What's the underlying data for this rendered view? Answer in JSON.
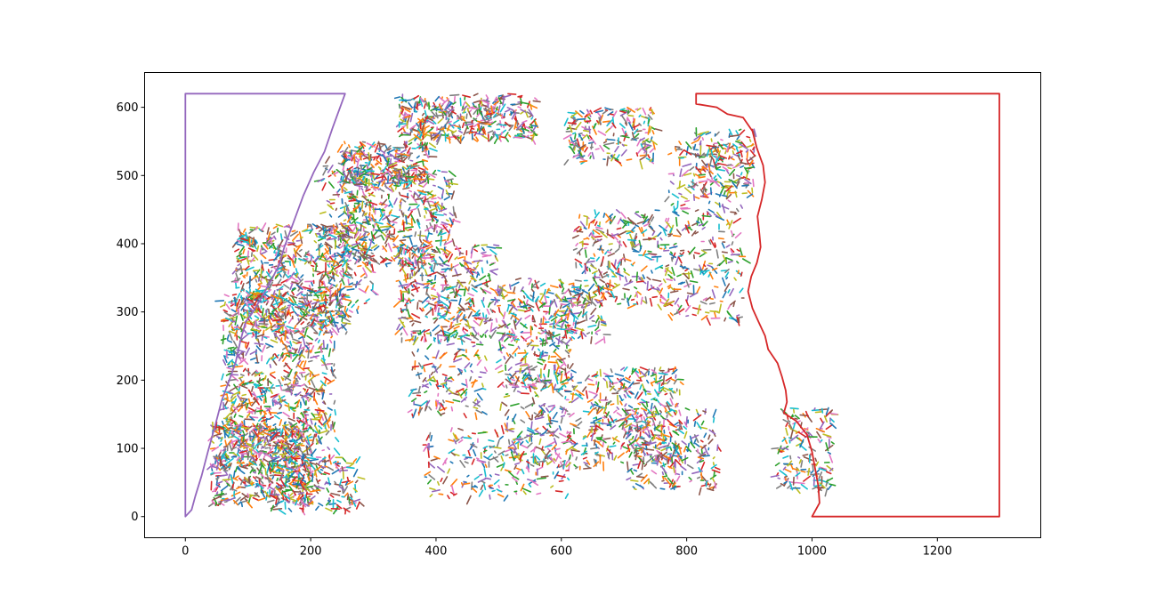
{
  "chart_data": {
    "type": "line",
    "title": "",
    "xlabel": "",
    "ylabel": "",
    "xlim": [
      -65,
      1365
    ],
    "ylim": [
      -31,
      651
    ],
    "x_ticks": [
      0,
      200,
      400,
      600,
      800,
      1000,
      1200
    ],
    "y_ticks": [
      0,
      100,
      200,
      300,
      400,
      500,
      600
    ],
    "x_tick_labels": [
      "0",
      "200",
      "400",
      "600",
      "800",
      "1000",
      "1200"
    ],
    "y_tick_labels": [
      "0",
      "100",
      "200",
      "300",
      "400",
      "500",
      "600"
    ],
    "grid": false,
    "legend": "none",
    "palette": [
      "#1f77b4",
      "#ff7f0e",
      "#2ca02c",
      "#d62728",
      "#9467bd",
      "#8c564b",
      "#e377c2",
      "#7f7f7f",
      "#bcbd22",
      "#17becf"
    ],
    "series": [
      {
        "color": "#9467bd",
        "points": [
          [
            0,
            620
          ],
          [
            255,
            620
          ],
          [
            245,
            595
          ],
          [
            235,
            570
          ],
          [
            222,
            535
          ],
          [
            205,
            505
          ],
          [
            188,
            470
          ],
          [
            172,
            430
          ],
          [
            158,
            395
          ],
          [
            150,
            370
          ],
          [
            138,
            348
          ],
          [
            122,
            322
          ],
          [
            108,
            300
          ],
          [
            96,
            285
          ],
          [
            88,
            258
          ],
          [
            80,
            225
          ],
          [
            70,
            200
          ],
          [
            58,
            170
          ],
          [
            48,
            135
          ],
          [
            36,
            95
          ],
          [
            26,
            60
          ],
          [
            16,
            30
          ],
          [
            10,
            10
          ],
          [
            0,
            0
          ],
          [
            0,
            620
          ]
        ]
      },
      {
        "color": "#d62728",
        "points": [
          [
            815,
            620
          ],
          [
            1299,
            620
          ],
          [
            1299,
            0
          ],
          [
            1000,
            0
          ],
          [
            1012,
            20
          ],
          [
            1010,
            45
          ],
          [
            1005,
            70
          ],
          [
            1000,
            95
          ],
          [
            992,
            120
          ],
          [
            975,
            140
          ],
          [
            955,
            152
          ],
          [
            960,
            168
          ],
          [
            958,
            185
          ],
          [
            952,
            205
          ],
          [
            945,
            225
          ],
          [
            930,
            245
          ],
          [
            925,
            265
          ],
          [
            915,
            285
          ],
          [
            905,
            305
          ],
          [
            898,
            330
          ],
          [
            903,
            352
          ],
          [
            912,
            372
          ],
          [
            918,
            395
          ],
          [
            916,
            415
          ],
          [
            913,
            440
          ],
          [
            920,
            465
          ],
          [
            925,
            490
          ],
          [
            922,
            515
          ],
          [
            912,
            540
          ],
          [
            905,
            565
          ],
          [
            890,
            585
          ],
          [
            865,
            590
          ],
          [
            848,
            600
          ],
          [
            815,
            605
          ],
          [
            815,
            620
          ]
        ]
      }
    ]
  }
}
